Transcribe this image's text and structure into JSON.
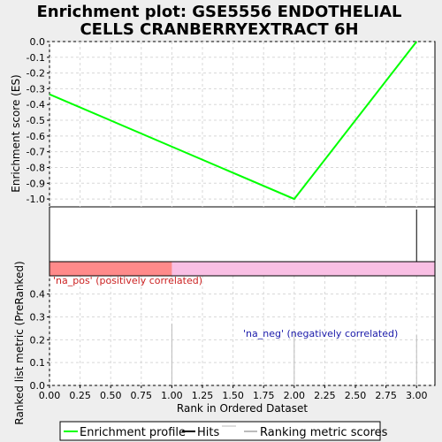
{
  "chart_data": {
    "type": "line",
    "title_lines": [
      "Enrichment plot: GSE5556 ENDOTHELIAL",
      "CELLS CRANBERRYEXTRACT 6H"
    ],
    "colors": {
      "profile": "#00ff00",
      "hits": "#000000",
      "metric": "#bbbbbb",
      "pos_band": "#ff8a8a",
      "neg_band": "#f9bfe4",
      "pos_text": "#cc2222",
      "neg_text": "#1a1aaa",
      "grid": "#d8d8d8"
    },
    "enrichment": {
      "ylabel": "Enrichment score (ES)",
      "ylim": [
        -1.05,
        0.0
      ],
      "yticks": [
        0.0,
        -0.1,
        -0.2,
        -0.3,
        -0.4,
        -0.5,
        -0.6,
        -0.7,
        -0.8,
        -0.9,
        -1.0
      ],
      "ytick_labels": [
        "0.0",
        "-0.1",
        "-0.2",
        "-0.3",
        "-0.4",
        "-0.5",
        "-0.6",
        "-0.7",
        "-0.8",
        "-0.9",
        "-1.0"
      ],
      "x": [
        0,
        2,
        3
      ],
      "y": [
        -0.335,
        -1.0,
        0.0
      ]
    },
    "hits": [
      3
    ],
    "bands": {
      "pos_range": [
        0,
        1
      ],
      "neg_range": [
        1,
        3.15
      ],
      "pos_label": "'na_pos' (positively correlated)",
      "neg_label": "'na_neg' (negatively correlated)"
    },
    "ranked": {
      "ylabel": "Ranked list metric (PreRanked)",
      "ylim": [
        0,
        0.48
      ],
      "yticks": [
        0.0,
        0.1,
        0.2,
        0.3,
        0.4
      ],
      "ytick_labels": [
        "0.0",
        "0.1",
        "0.2",
        "0.3",
        "0.4"
      ],
      "x": [
        1,
        2,
        3
      ],
      "values": [
        0.27,
        0.24,
        0.22
      ]
    },
    "xaxis": {
      "label": "Rank in Ordered Dataset",
      "xlim": [
        0,
        3.15
      ],
      "ticks": [
        0.0,
        0.25,
        0.5,
        0.75,
        1.0,
        1.25,
        1.5,
        1.75,
        2.0,
        2.25,
        2.5,
        2.75,
        3.0
      ],
      "tick_labels": [
        "0.00",
        "0.25",
        "0.50",
        "0.75",
        "1.00",
        "1.25",
        "1.50",
        "1.75",
        "2.00",
        "2.25",
        "2.50",
        "2.75",
        "3.00"
      ]
    },
    "legend": {
      "placement": "bottom",
      "entries": [
        "Enrichment profile",
        "Hits",
        "Ranking metric scores"
      ]
    },
    "grid": true
  }
}
